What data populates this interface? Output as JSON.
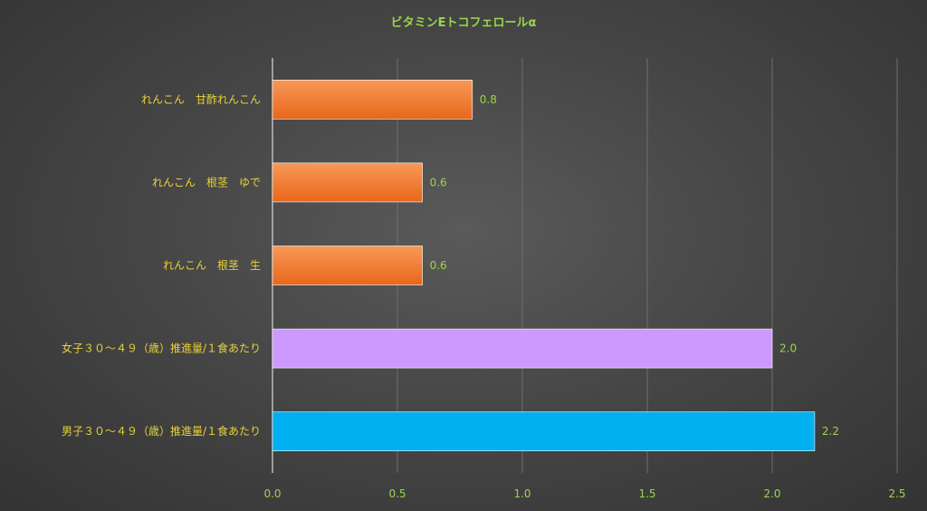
{
  "chart_data": {
    "type": "bar",
    "orientation": "horizontal",
    "title": "ビタミンEトコフェロールα",
    "xlabel": "",
    "ylabel": "",
    "xlim": [
      0,
      2.5
    ],
    "xticks": [
      0,
      0.5,
      1,
      1.5,
      2,
      2.5
    ],
    "xtick_labels": [
      "0.0",
      "0.5",
      "1.0",
      "1.5",
      "2.0",
      "2.5"
    ],
    "grid": true,
    "legend": "none",
    "categories": [
      "れんこん　甘酢れんこん",
      "れんこん　根茎　ゆで",
      "れんこん　根茎　生",
      "女子３０～４９（歳）推進量/１食あたり",
      "男子３０～４９（歳）推進量/１食あたり"
    ],
    "values": [
      0.8,
      0.6,
      0.6,
      2.0,
      2.17
    ],
    "data_labels": [
      "0.8",
      "0.6",
      "0.6",
      "2.0",
      "2.2"
    ],
    "colors": [
      "#f07a28",
      "#f07a28",
      "#f07a28",
      "#cc99ff",
      "#00b0f0"
    ]
  }
}
